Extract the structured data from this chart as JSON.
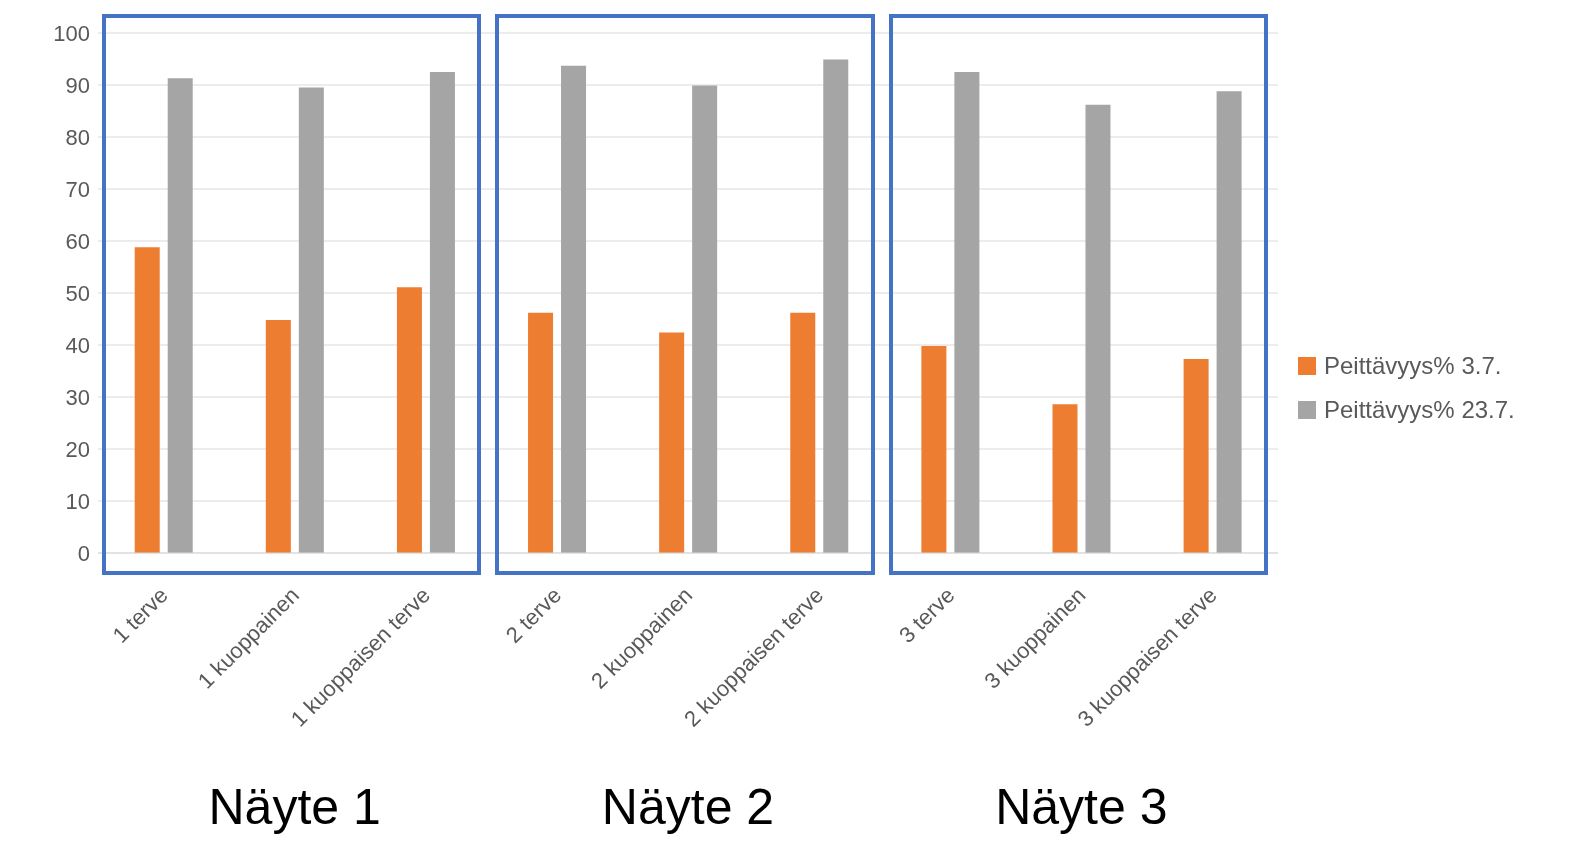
{
  "chart_data": {
    "type": "bar",
    "categories": [
      "1 terve",
      "1 kuoppainen",
      "1 kuoppaisen terve",
      "2 terve",
      "2 kuoppainen",
      "2 kuoppaisen terve",
      "3 terve",
      "3 kuoppainen",
      "3 kuoppaisen terve"
    ],
    "series": [
      {
        "name": "Peittävyys% 3.7.",
        "color": "#ed7d31",
        "values": [
          58.8,
          44.8,
          51.1,
          46.2,
          42.4,
          46.2,
          39.8,
          28.6,
          37.3
        ]
      },
      {
        "name": "Peittävyys% 23.7.",
        "color": "#a5a5a5",
        "values": [
          91.3,
          89.5,
          92.5,
          93.7,
          89.9,
          94.9,
          92.5,
          86.2,
          88.8
        ]
      }
    ],
    "ylim": [
      0,
      100
    ],
    "yticks": [
      0,
      10,
      20,
      30,
      40,
      50,
      60,
      70,
      80,
      90,
      100
    ],
    "grid": "y",
    "legend": "right",
    "annotations": [
      "Näyte 1",
      "Näyte 2",
      "Näyte 3"
    ]
  }
}
